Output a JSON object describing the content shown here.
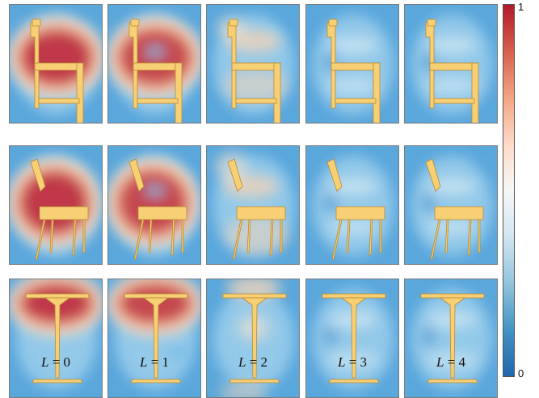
{
  "figure": {
    "rows": [
      {
        "shape": "chair-side",
        "columns": [
          "L = 0",
          "L = 1",
          "L = 2",
          "L = 3",
          "L = 4"
        ]
      },
      {
        "shape": "chair-tilted",
        "columns": [
          "L = 0",
          "L = 1",
          "L = 2",
          "L = 3",
          "L = 4"
        ]
      },
      {
        "shape": "table",
        "columns": [
          "L = 0",
          "L = 1",
          "L = 2",
          "L = 3",
          "L = 4"
        ]
      }
    ],
    "column_labels": [
      {
        "var": "L",
        "eq": " = 0"
      },
      {
        "var": "L",
        "eq": " = 1"
      },
      {
        "var": "L",
        "eq": " = 2"
      },
      {
        "var": "L",
        "eq": " = 3"
      },
      {
        "var": "L",
        "eq": " = 4"
      }
    ],
    "error_level_by_column": [
      1.0,
      0.85,
      0.35,
      0.12,
      0.1
    ]
  },
  "colorbar": {
    "max_label": "1",
    "min_label": "0",
    "colors": [
      "#b2182b",
      "#d6604d",
      "#f4a582",
      "#fddbc7",
      "#f7f7f7",
      "#d1e5f0",
      "#92c5de",
      "#4393c3",
      "#2166ac"
    ]
  },
  "shape_color": "#f7cf75",
  "shape_stroke": "#b88a35"
}
